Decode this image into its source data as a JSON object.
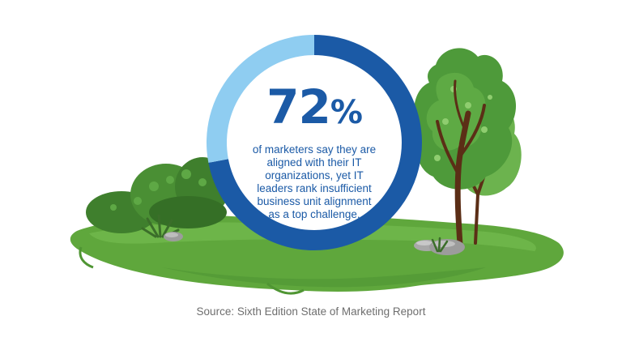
{
  "chart_data": {
    "type": "pie",
    "style": "donut",
    "slices": [
      {
        "value": 72,
        "color": "#1b5aa6"
      },
      {
        "value": 28,
        "color": "#8fcdf1"
      }
    ],
    "value_label": "72",
    "value_unit": "%",
    "description": "of marketers say they are aligned with their IT organizations, yet IT leaders rank insufficient business unit alignment as a top challenge."
  },
  "description_lines": [
    "of marketers say they are",
    "aligned with their IT",
    "organizations, yet IT",
    "leaders rank insufficient",
    "business unit alignment",
    "as a top challenge."
  ],
  "source": "Source: Sixth Edition State of Marketing Report",
  "colors": {
    "ring_primary": "#1b5aa6",
    "ring_secondary": "#8fcdf1",
    "grass": "#5fa73c",
    "grass_light": "#7cbf55",
    "tree_foliage": "#4e9a3a",
    "trunk": "#5b2e16",
    "text": "#1b5aa6",
    "source_text": "#6e6e6e"
  },
  "icons": [
    "tree-icon",
    "bush-icon",
    "rock-icon",
    "grass-tuft-icon"
  ]
}
